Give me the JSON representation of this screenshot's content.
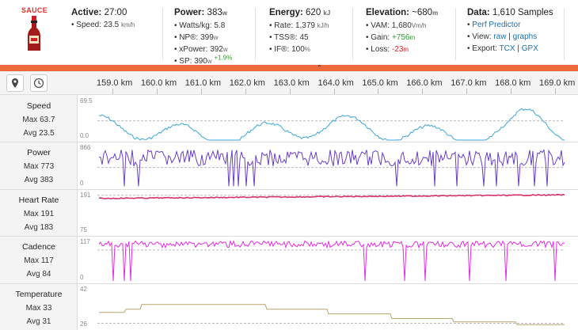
{
  "app": {
    "brand": "SAUCE"
  },
  "stats": {
    "active": {
      "label": "Active:",
      "value": "27:00",
      "speed_label": "Speed:",
      "speed_value": "23.5",
      "speed_unit": "km/h"
    },
    "power": {
      "label": "Power:",
      "value": "383",
      "unit": "w",
      "wkg_label": "Watts/kg:",
      "wkg_value": "5.8",
      "np_label": "NP®:",
      "np_value": "399",
      "np_unit": "w",
      "xp_label": "xPower:",
      "xp_value": "392",
      "xp_unit": "w",
      "sp_label": "SP:",
      "sp_value": "390",
      "sp_unit": "w",
      "sp_delta": "+1.9%"
    },
    "energy": {
      "label": "Energy:",
      "value": "620",
      "unit": "kJ",
      "rate_label": "Rate:",
      "rate_value": "1,379",
      "rate_unit": "kJ/h",
      "tss_label": "TSS®:",
      "tss_value": "45",
      "if_label": "IF®:",
      "if_value": "100",
      "if_unit": "%"
    },
    "elevation": {
      "label": "Elevation:",
      "value": "~680",
      "unit": "m",
      "vam_label": "VAM:",
      "vam_value": "1,680",
      "vam_unit": "Vm/h",
      "gain_label": "Gain:",
      "gain_value": "+756",
      "gain_unit": "m",
      "loss_label": "Loss:",
      "loss_value": "-23",
      "loss_unit": "m"
    },
    "data": {
      "label": "Data:",
      "value": "1,610 Samples",
      "perf_link": "Perf Predictor",
      "view_label": "View:",
      "view_raw": "raw",
      "view_sep": "|",
      "view_graphs": "graphs",
      "export_label": "Export:",
      "export_tcx": "TCX",
      "export_sep": "|",
      "export_gpx": "GPX"
    }
  },
  "toolbar": {
    "location_icon": "map-pin-icon",
    "time_icon": "clock-icon"
  },
  "distance_ticks": [
    "159.0 km",
    "160.0 km",
    "161.0 km",
    "162.0 km",
    "163.0 km",
    "164.0 km",
    "165.0 km",
    "166.0 km",
    "167.0 km",
    "168.0 km",
    "169.0 km"
  ],
  "rows": [
    {
      "name": "speed",
      "title": "Speed",
      "max_label": "Max 63.7",
      "avg_label": "Avg 23.5",
      "y_max": "69.5",
      "y_min": "0.0",
      "color": "#3aa6d8"
    },
    {
      "name": "power",
      "title": "Power",
      "max_label": "Max 773",
      "avg_label": "Avg 383",
      "y_max": "866",
      "y_min": "0",
      "color": "#6a3fc4"
    },
    {
      "name": "heart-rate",
      "title": "Heart Rate",
      "max_label": "Max 191",
      "avg_label": "Avg 183",
      "y_max": "191",
      "y_min": "75",
      "color": "#d6336c"
    },
    {
      "name": "cadence",
      "title": "Cadence",
      "max_label": "Max 117",
      "avg_label": "Avg 84",
      "y_max": "117",
      "y_min": "0",
      "color": "#e12ee0"
    },
    {
      "name": "temperature",
      "title": "Temperature",
      "max_label": "Max 33",
      "avg_label": "Avg 31",
      "y_max": "42",
      "y_min": "26",
      "color": "#b8a36a"
    }
  ]
}
